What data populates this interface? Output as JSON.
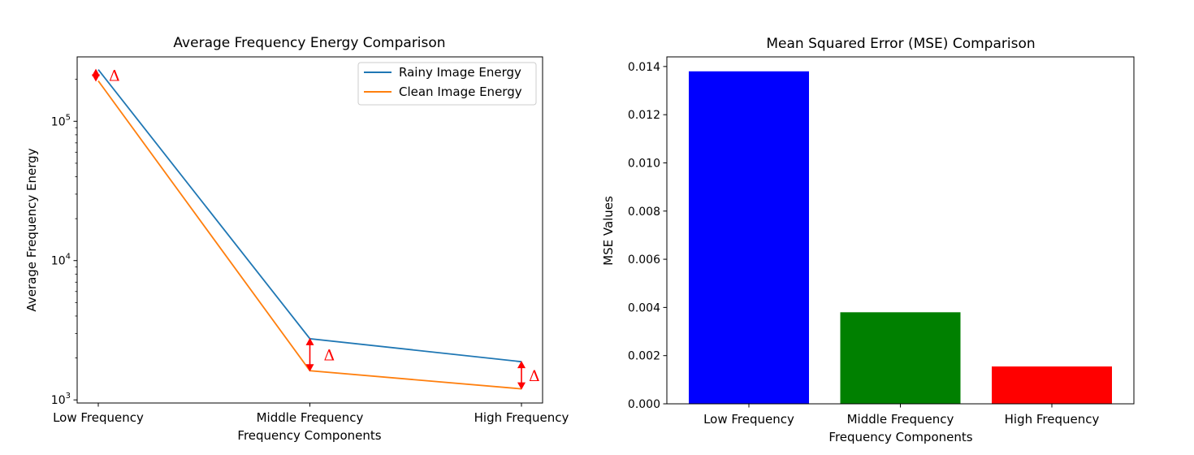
{
  "chart_data": [
    {
      "type": "line",
      "title": "Average Frequency Energy Comparison",
      "xlabel": "Frequency Components",
      "ylabel": "Average Frequency Energy",
      "yscale": "log",
      "ylim": [
        950,
        290000
      ],
      "y_ticks": [
        {
          "value": 1000,
          "base": "10",
          "exp": "3"
        },
        {
          "value": 10000,
          "base": "10",
          "exp": "4"
        },
        {
          "value": 100000,
          "base": "10",
          "exp": "5"
        }
      ],
      "categories": [
        "Low Frequency",
        "Middle Frequency",
        "High Frequency"
      ],
      "series": [
        {
          "name": "Rainy Image Energy",
          "color": "#1f77b4",
          "values": [
            235000,
            2750,
            1880
          ]
        },
        {
          "name": "Clean Image Energy",
          "color": "#ff7f0e",
          "values": [
            195000,
            1620,
            1200
          ]
        }
      ],
      "annotation_symbol": "Δ",
      "annotation_color": "#ff0000",
      "legend_position": "upper right"
    },
    {
      "type": "bar",
      "title": "Mean Squared Error (MSE) Comparison",
      "xlabel": "Frequency Components",
      "ylabel": "MSE Values",
      "ylim": [
        0,
        0.0144
      ],
      "y_ticks": [
        "0.000",
        "0.002",
        "0.004",
        "0.006",
        "0.008",
        "0.010",
        "0.012",
        "0.014"
      ],
      "categories": [
        "Low Frequency",
        "Middle Frequency",
        "High Frequency"
      ],
      "values": [
        0.0138,
        0.0038,
        0.00155
      ],
      "colors": [
        "#0000ff",
        "#008000",
        "#ff0000"
      ]
    }
  ]
}
